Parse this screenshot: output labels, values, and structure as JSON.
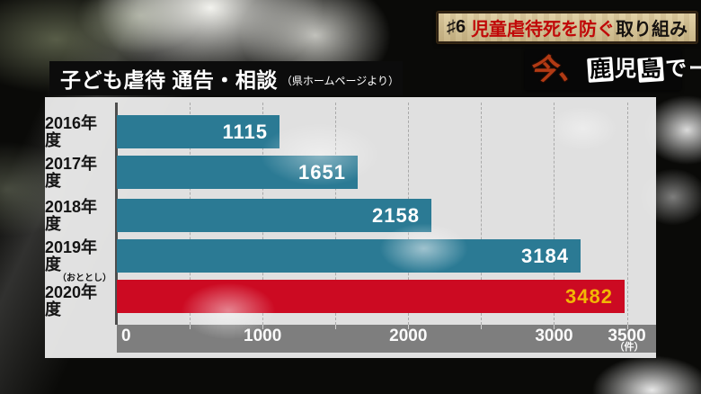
{
  "episode_banner": {
    "number": "♯6",
    "highlight": "児童虐待死を防ぐ",
    "rest": "取り組み"
  },
  "program_logo": {
    "lead": "今、",
    "chars": [
      {
        "text": "鹿",
        "boxed": true
      },
      {
        "text": "児",
        "boxed": false
      },
      {
        "text": "島",
        "boxed": true
      },
      {
        "text": "で",
        "boxed": false
      },
      {
        "text": "ー",
        "boxed": false
      }
    ]
  },
  "chart_title": {
    "main": "子ども虐待 通告・相談",
    "source": "（県ホームページより）"
  },
  "chart_data": {
    "type": "bar",
    "orientation": "horizontal",
    "title": "子ども虐待 通告・相談（県ホームページより）",
    "categories": [
      "2016年度",
      "2017年度",
      "2018年度",
      "2019年度",
      "2020年度"
    ],
    "values": [
      1115,
      1651,
      2158,
      3184,
      3482
    ],
    "notes": [
      "",
      "",
      "",
      "",
      "（おととし）"
    ],
    "highlight_index": 4,
    "xlim": [
      0,
      3700
    ],
    "x_ticks": [
      0,
      1000,
      2000,
      3000,
      3500
    ],
    "x_unit_label": "（件）",
    "gridline_step": 500,
    "grid_style": "dashed",
    "legend": "none",
    "colors": {
      "bar": "#2b7a94",
      "highlight_bar": "#cc0a22",
      "value_text": "#ffffff",
      "highlight_value_text": "#f2b705",
      "axis_band": "#7e7e7e",
      "panel": "#ececec"
    }
  }
}
